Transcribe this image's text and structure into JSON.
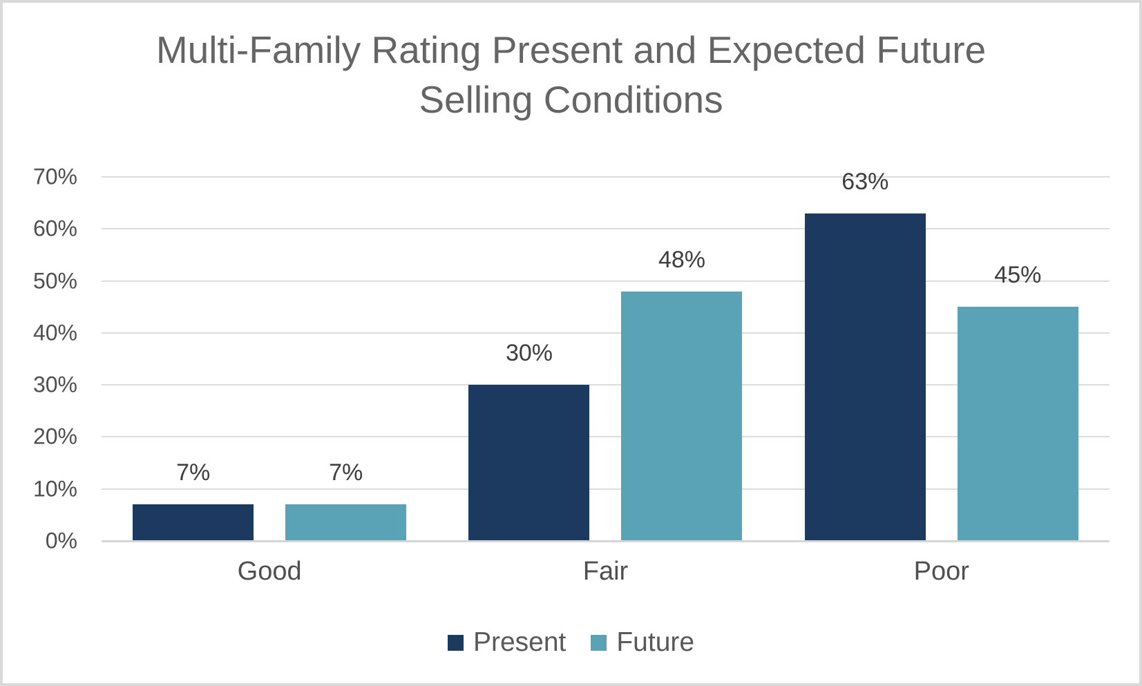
{
  "title": {
    "line1": "Multi-Family Rating Present and Expected Future",
    "line2": "Selling Conditions"
  },
  "colors": {
    "present_series": "#1C3A5F",
    "future_series": "#5AA2B5",
    "gridline": "#DCDCDC",
    "axis_baseline": "#D5D5D5",
    "title_text": "#656565",
    "label_text": "#3D3D3D",
    "frame_border": "#D9D9D9",
    "background": "#FFFFFF"
  },
  "chart_data": {
    "type": "bar",
    "title": "Multi-Family Rating Present and Expected Future Selling Conditions",
    "categories": [
      "Good",
      "Fair",
      "Poor"
    ],
    "series": [
      {
        "name": "Present",
        "color": "#1C3A5F",
        "values": [
          7,
          30,
          63
        ],
        "labels": [
          "7%",
          "30%",
          "63%"
        ]
      },
      {
        "name": "Future",
        "color": "#5AA2B5",
        "values": [
          7,
          48,
          45
        ],
        "labels": [
          "7%",
          "48%",
          "45%"
        ]
      }
    ],
    "xlabel": "",
    "ylabel": "",
    "ylim": [
      0,
      70
    ],
    "yticks": [
      {
        "value": 0,
        "label": "0%"
      },
      {
        "value": 10,
        "label": "10%"
      },
      {
        "value": 20,
        "label": "20%"
      },
      {
        "value": 30,
        "label": "30%"
      },
      {
        "value": 40,
        "label": "40%"
      },
      {
        "value": 50,
        "label": "50%"
      },
      {
        "value": 60,
        "label": "60%"
      },
      {
        "value": 70,
        "label": "70%"
      }
    ],
    "grid": true,
    "legend_position": "bottom",
    "legend": [
      "Present",
      "Future"
    ]
  }
}
